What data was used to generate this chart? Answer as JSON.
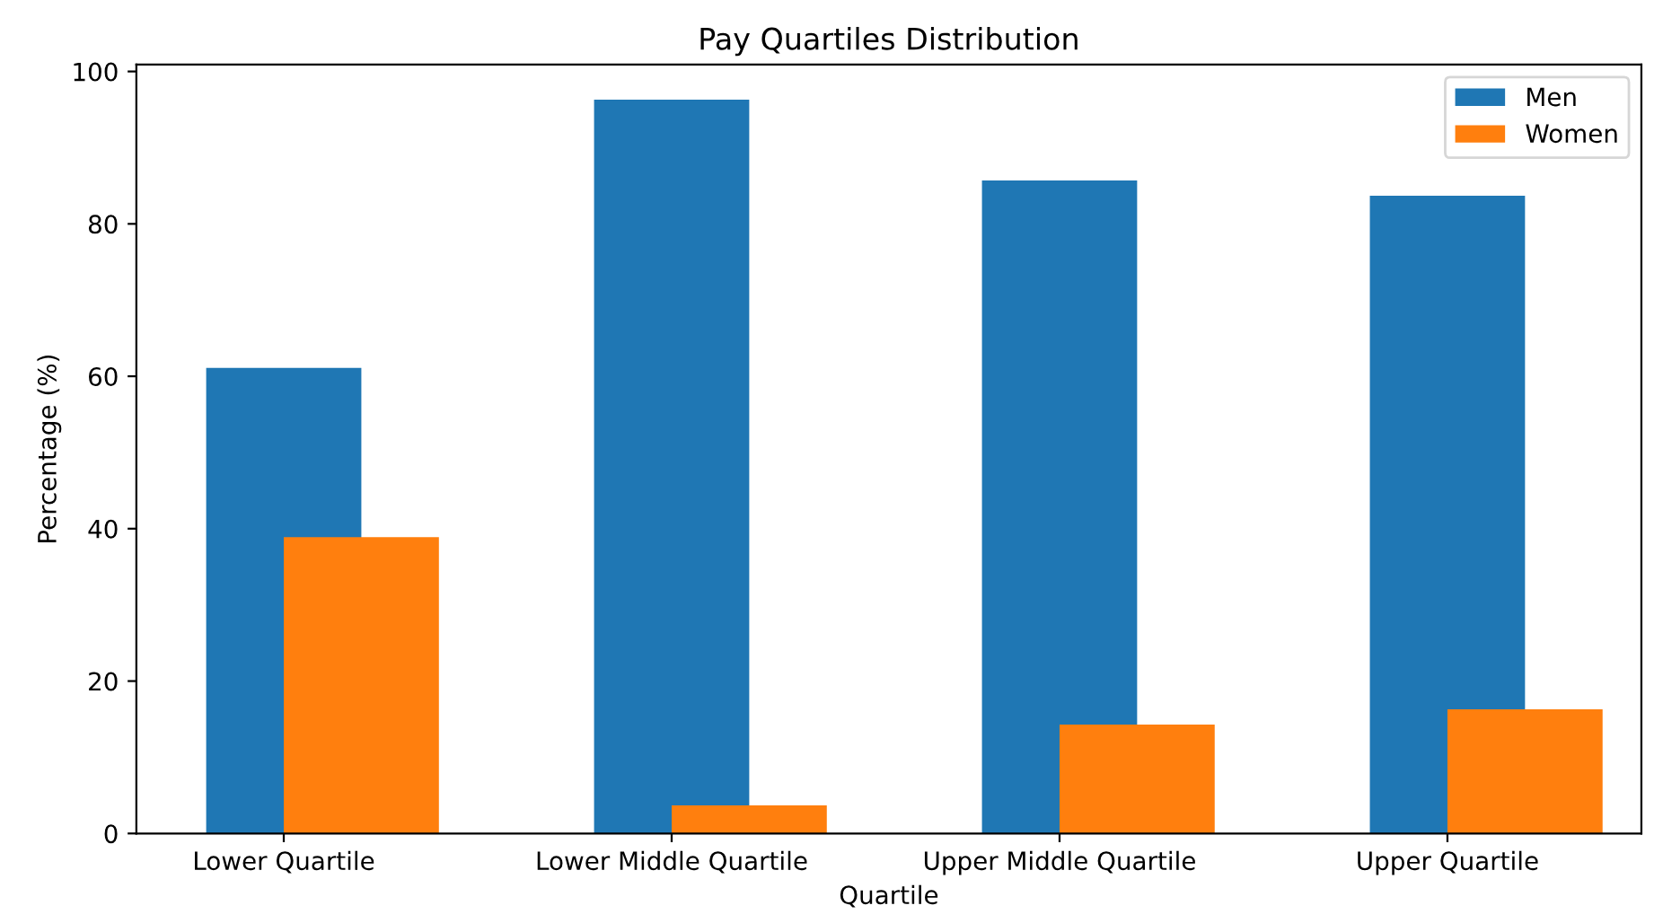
{
  "chart_data": {
    "type": "bar",
    "title": "Pay Quartiles Distribution",
    "xlabel": "Quartile",
    "ylabel": "Percentage (%)",
    "categories": [
      "Lower Quartile",
      "Lower Middle Quartile",
      "Upper Middle Quartile",
      "Upper Quartile"
    ],
    "series": [
      {
        "name": "Men",
        "color": "#1f77b4",
        "values": [
          61.1,
          96.3,
          85.7,
          83.7
        ]
      },
      {
        "name": "Women",
        "color": "#ff7f0e",
        "values": [
          38.9,
          3.7,
          14.3,
          16.3
        ]
      }
    ],
    "ylim": [
      0,
      100.9
    ],
    "yticks": [
      0,
      20,
      40,
      60,
      80,
      100
    ],
    "grid": false,
    "legend": "top right"
  }
}
